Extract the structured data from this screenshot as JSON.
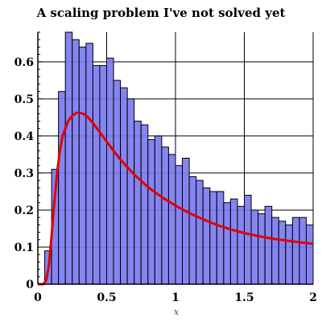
{
  "chart_data": {
    "type": "bar",
    "title": "A scaling problem I've not solved yet",
    "xlabel": "x",
    "ylabel": "",
    "xlim": [
      0,
      2
    ],
    "ylim": [
      0,
      0.68
    ],
    "grid": true,
    "x_ticks": [
      "0",
      "0.5",
      "1",
      "1.5",
      "2"
    ],
    "y_ticks": [
      "0",
      "0.1",
      "0.2",
      "0.3",
      "0.4",
      "0.5",
      "0.6"
    ],
    "histogram": {
      "bin_width": 0.05,
      "bin_starts": [
        0.05,
        0.1,
        0.15,
        0.2,
        0.25,
        0.3,
        0.35,
        0.4,
        0.45,
        0.5,
        0.55,
        0.6,
        0.65,
        0.7,
        0.75,
        0.8,
        0.85,
        0.9,
        0.95,
        1.0,
        1.05,
        1.1,
        1.15,
        1.2,
        1.25,
        1.3,
        1.35,
        1.4,
        1.45,
        1.5,
        1.55,
        1.6,
        1.65,
        1.7,
        1.75,
        1.8,
        1.85,
        1.9,
        1.95
      ],
      "values": [
        0.09,
        0.31,
        0.52,
        0.68,
        0.66,
        0.64,
        0.65,
        0.59,
        0.59,
        0.61,
        0.55,
        0.53,
        0.5,
        0.44,
        0.43,
        0.39,
        0.4,
        0.37,
        0.35,
        0.32,
        0.34,
        0.29,
        0.28,
        0.26,
        0.25,
        0.25,
        0.22,
        0.23,
        0.21,
        0.24,
        0.2,
        0.19,
        0.21,
        0.18,
        0.17,
        0.16,
        0.18,
        0.18,
        0.16
      ],
      "color": "#7b7bf0",
      "edge_color": "#000000"
    },
    "curve": {
      "color": "#e00000",
      "x": [
        0.0,
        0.04,
        0.06,
        0.08,
        0.1,
        0.12,
        0.14,
        0.16,
        0.18,
        0.2,
        0.22,
        0.25,
        0.28,
        0.3,
        0.33,
        0.36,
        0.4,
        0.45,
        0.5,
        0.55,
        0.6,
        0.7,
        0.8,
        0.9,
        1.0,
        1.1,
        1.2,
        1.3,
        1.4,
        1.5,
        1.6,
        1.7,
        1.8,
        1.9,
        2.0
      ],
      "y": [
        0.0,
        0.0,
        0.01,
        0.05,
        0.13,
        0.22,
        0.3,
        0.36,
        0.4,
        0.42,
        0.44,
        0.455,
        0.462,
        0.463,
        0.46,
        0.452,
        0.435,
        0.41,
        0.385,
        0.36,
        0.336,
        0.296,
        0.262,
        0.235,
        0.212,
        0.192,
        0.175,
        0.16,
        0.148,
        0.138,
        0.13,
        0.123,
        0.118,
        0.113,
        0.109
      ]
    }
  }
}
